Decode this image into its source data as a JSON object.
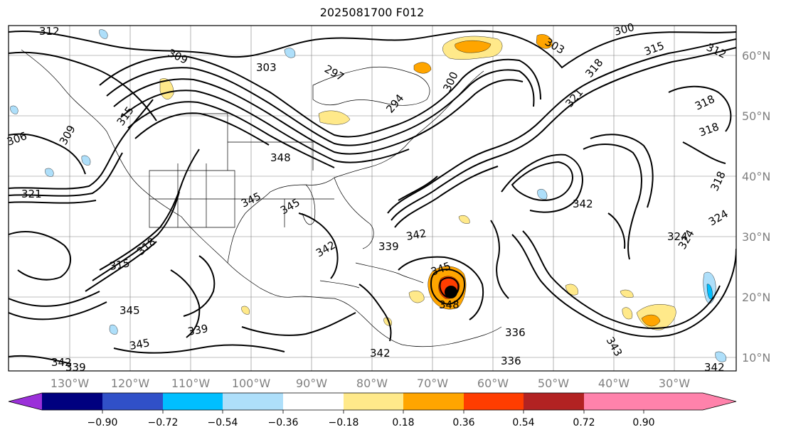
{
  "title": "2025081700 F012",
  "map": {
    "lon_labels": [
      "130°W",
      "120°W",
      "110°W",
      "100°W",
      "90°W",
      "80°W",
      "70°W",
      "60°W",
      "50°W",
      "40°W",
      "30°W"
    ],
    "lat_labels": [
      "60°N",
      "50°N",
      "40°N",
      "30°N",
      "20°N",
      "10°N"
    ],
    "contour_labels": [
      {
        "text": "312"
      },
      {
        "text": "309"
      },
      {
        "text": "303"
      },
      {
        "text": "297"
      },
      {
        "text": "294"
      },
      {
        "text": "300"
      },
      {
        "text": "303"
      },
      {
        "text": "300"
      },
      {
        "text": "315"
      },
      {
        "text": "312"
      },
      {
        "text": "318"
      },
      {
        "text": "321"
      },
      {
        "text": "318"
      },
      {
        "text": "318"
      },
      {
        "text": "315"
      },
      {
        "text": "306"
      },
      {
        "text": "309"
      },
      {
        "text": "321"
      },
      {
        "text": "348"
      },
      {
        "text": "345"
      },
      {
        "text": "345"
      },
      {
        "text": "342"
      },
      {
        "text": "342"
      },
      {
        "text": "339"
      },
      {
        "text": "342"
      },
      {
        "text": "324"
      },
      {
        "text": "315"
      },
      {
        "text": "318"
      },
      {
        "text": "345"
      },
      {
        "text": "345"
      },
      {
        "text": "339"
      },
      {
        "text": "342"
      },
      {
        "text": "339"
      },
      {
        "text": "345"
      },
      {
        "text": "348"
      },
      {
        "text": "336"
      },
      {
        "text": "336"
      },
      {
        "text": "342"
      },
      {
        "text": "343"
      },
      {
        "text": "342"
      },
      {
        "text": "324"
      },
      {
        "text": "318"
      },
      {
        "text": "324"
      }
    ]
  },
  "colorbar": {
    "colors": [
      "#9b30d9",
      "#00007f",
      "#3050c8",
      "#00bfff",
      "#aedffa",
      "#ffffff",
      "#ffe98a",
      "#ffa500",
      "#ff3d00",
      "#b22222",
      "#ff82ab"
    ],
    "tick_labels": [
      "−0.90",
      "−0.72",
      "−0.54",
      "−0.36",
      "−0.18",
      "0.18",
      "0.36",
      "0.54",
      "0.72",
      "0.90"
    ]
  }
}
